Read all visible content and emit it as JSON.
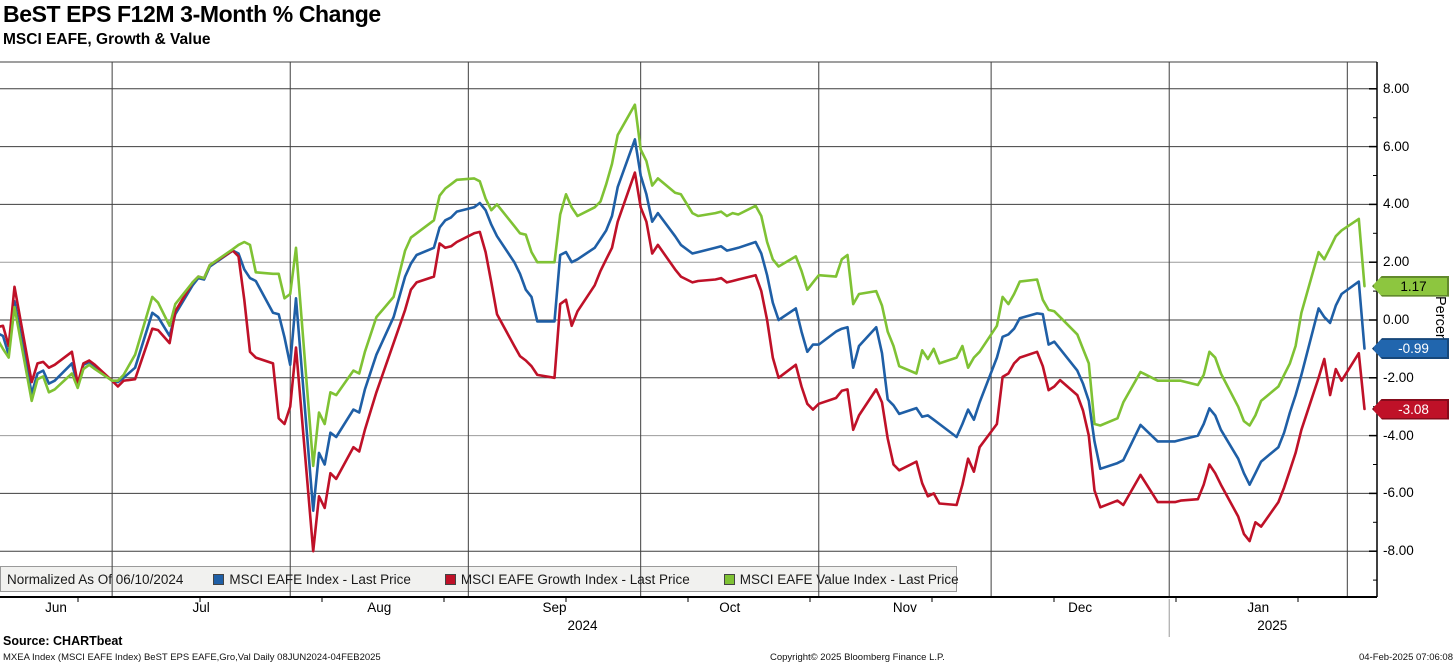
{
  "chart_data": {
    "type": "line",
    "title": "BeST EPS F12M 3-Month % Change",
    "subtitle": "MSCI EAFE, Growth & Value",
    "ylabel": "Percent",
    "ylim": [
      -9.6,
      8.9
    ],
    "grid": "on",
    "legend": {
      "position": "bottom-inside",
      "note": "Normalized As Of 06/10/2024"
    },
    "y_axis": {
      "major_ticks": [
        8,
        6,
        4,
        2,
        0,
        -2,
        -4,
        -6,
        -8
      ],
      "major_tick_labels": [
        "8.00",
        "6.00",
        "4.00",
        "2.00",
        "0.00",
        "-2.00",
        "-4.00",
        "-6.00",
        "-8.00"
      ],
      "minor_ticks": [
        7,
        5,
        3,
        1,
        -1,
        -3,
        -5,
        -7,
        -9
      ]
    },
    "x_axis": {
      "range": [
        "2024-06-08",
        "2025-02-04"
      ],
      "month_boundaries": [
        "2024-06-08",
        "2024-07-01",
        "2024-08-01",
        "2024-09-01",
        "2024-10-01",
        "2024-11-01",
        "2024-12-01",
        "2025-01-01",
        "2025-02-01"
      ],
      "month_labels": [
        "Jun",
        "Jul",
        "Aug",
        "Sep",
        "Oct",
        "Nov",
        "Dec",
        "Jan"
      ],
      "year_labels": [
        {
          "text": "2024",
          "month_index": 3,
          "dx": 28
        },
        {
          "text": "2025",
          "month_index": 7,
          "dx": 14
        }
      ]
    },
    "series": [
      {
        "key": "eafe",
        "name": "MSCI EAFE Index - Last Price",
        "color": "#1f5fa6",
        "badge_bg": "#2166ae",
        "badge_text_color": "#ffffff",
        "last_value_label": "-0.99"
      },
      {
        "key": "growth",
        "name": "MSCI EAFE Growth Index - Last Price",
        "color": "#bf1128",
        "badge_bg": "#bf1128",
        "badge_text_color": "#ffffff",
        "last_value_label": "-3.08"
      },
      {
        "key": "value",
        "name": "MSCI EAFE Value Index - Last Price",
        "color": "#7fc234",
        "badge_bg": "#8dc63f",
        "badge_text_color": "#000000",
        "last_value_label": "1.17"
      }
    ],
    "points_format": [
      "date",
      "eafe",
      "growth",
      "value"
    ],
    "points": [
      [
        "2024-06-10",
        0.0,
        0.0,
        0.0
      ],
      [
        "2024-06-11",
        -0.45,
        -0.25,
        -0.65
      ],
      [
        "2024-06-12",
        -0.55,
        -0.2,
        -1.0
      ],
      [
        "2024-06-13",
        -1.2,
        -0.9,
        -1.3
      ],
      [
        "2024-06-14",
        0.65,
        1.15,
        0.45
      ],
      [
        "2024-06-17",
        -2.55,
        -2.15,
        -2.8
      ],
      [
        "2024-06-18",
        -1.85,
        -1.5,
        -2.05
      ],
      [
        "2024-06-19",
        -1.75,
        -1.45,
        -1.95
      ],
      [
        "2024-06-20",
        -2.2,
        -1.65,
        -2.5
      ],
      [
        "2024-06-21",
        -2.1,
        -1.55,
        -2.4
      ],
      [
        "2024-06-24",
        -1.5,
        -1.1,
        -1.85
      ],
      [
        "2024-06-25",
        -2.25,
        -2.2,
        -2.35
      ],
      [
        "2024-06-26",
        -1.55,
        -1.5,
        -1.7
      ],
      [
        "2024-06-27",
        -1.45,
        -1.4,
        -1.55
      ],
      [
        "2024-06-28",
        -1.6,
        -1.55,
        -1.7
      ],
      [
        "2024-07-01",
        -2.1,
        -2.1,
        -2.1
      ],
      [
        "2024-07-02",
        -2.15,
        -2.3,
        -2.1
      ],
      [
        "2024-07-03",
        -2.0,
        -2.1,
        -1.9
      ],
      [
        "2024-07-05",
        -1.65,
        -2.05,
        -1.2
      ],
      [
        "2024-07-08",
        0.25,
        -0.3,
        0.8
      ],
      [
        "2024-07-09",
        0.1,
        -0.35,
        0.6
      ],
      [
        "2024-07-11",
        -0.55,
        -0.8,
        -0.2
      ],
      [
        "2024-07-12",
        0.2,
        0.3,
        0.55
      ],
      [
        "2024-07-15",
        1.2,
        1.3,
        1.3
      ],
      [
        "2024-07-16",
        1.45,
        1.5,
        1.5
      ],
      [
        "2024-07-17",
        1.4,
        1.45,
        1.45
      ],
      [
        "2024-07-18",
        1.85,
        1.9,
        1.9
      ],
      [
        "2024-07-22",
        2.4,
        2.4,
        2.45
      ],
      [
        "2024-07-23",
        2.3,
        2.2,
        2.6
      ],
      [
        "2024-07-24",
        1.75,
        0.7,
        2.7
      ],
      [
        "2024-07-25",
        1.45,
        -1.1,
        2.6
      ],
      [
        "2024-07-26",
        1.35,
        -1.3,
        1.65
      ],
      [
        "2024-07-29",
        0.25,
        -1.5,
        1.6
      ],
      [
        "2024-07-30",
        0.2,
        -3.4,
        1.6
      ],
      [
        "2024-07-31",
        -0.6,
        -3.6,
        0.75
      ],
      [
        "2024-08-01",
        -1.55,
        -3.0,
        0.9
      ],
      [
        "2024-08-02",
        0.75,
        -0.95,
        2.5
      ],
      [
        "2024-08-05",
        -6.6,
        -8.0,
        -5.05
      ],
      [
        "2024-08-06",
        -4.6,
        -6.1,
        -3.2
      ],
      [
        "2024-08-07",
        -5.0,
        -6.5,
        -3.6
      ],
      [
        "2024-08-08",
        -3.9,
        -5.3,
        -2.5
      ],
      [
        "2024-08-09",
        -4.05,
        -5.5,
        -2.6
      ],
      [
        "2024-08-12",
        -3.1,
        -4.4,
        -1.75
      ],
      [
        "2024-08-13",
        -3.2,
        -4.55,
        -1.85
      ],
      [
        "2024-08-14",
        -2.4,
        -3.8,
        -1.1
      ],
      [
        "2024-08-16",
        -1.2,
        -2.5,
        0.1
      ],
      [
        "2024-08-19",
        0.1,
        -0.8,
        0.8
      ],
      [
        "2024-08-21",
        1.5,
        0.35,
        2.4
      ],
      [
        "2024-08-22",
        1.95,
        1.05,
        2.85
      ],
      [
        "2024-08-23",
        2.25,
        1.3,
        3.0
      ],
      [
        "2024-08-26",
        2.5,
        1.5,
        3.45
      ],
      [
        "2024-08-27",
        3.2,
        2.65,
        4.3
      ],
      [
        "2024-08-28",
        3.45,
        2.5,
        4.55
      ],
      [
        "2024-08-29",
        3.55,
        2.55,
        4.7
      ],
      [
        "2024-08-30",
        3.75,
        2.7,
        4.85
      ],
      [
        "2024-09-02",
        3.9,
        3.0,
        4.9
      ],
      [
        "2024-09-03",
        4.05,
        3.05,
        4.8
      ],
      [
        "2024-09-04",
        3.8,
        2.35,
        4.2
      ],
      [
        "2024-09-05",
        3.3,
        1.3,
        3.8
      ],
      [
        "2024-09-06",
        2.9,
        0.2,
        4.0
      ],
      [
        "2024-09-09",
        2.0,
        -0.9,
        3.25
      ],
      [
        "2024-09-10",
        1.6,
        -1.25,
        3.0
      ],
      [
        "2024-09-11",
        1.05,
        -1.4,
        2.95
      ],
      [
        "2024-09-12",
        0.8,
        -1.6,
        2.35
      ],
      [
        "2024-09-13",
        -0.05,
        -1.9,
        2.0
      ],
      [
        "2024-09-16",
        -0.05,
        -2.0,
        2.0
      ],
      [
        "2024-09-17",
        2.25,
        0.55,
        3.65
      ],
      [
        "2024-09-18",
        2.35,
        0.7,
        4.35
      ],
      [
        "2024-09-19",
        2.0,
        -0.2,
        3.9
      ],
      [
        "2024-09-20",
        2.1,
        0.3,
        3.6
      ],
      [
        "2024-09-23",
        2.5,
        1.2,
        3.9
      ],
      [
        "2024-09-24",
        2.8,
        1.7,
        4.1
      ],
      [
        "2024-09-25",
        3.1,
        2.1,
        4.7
      ],
      [
        "2024-09-26",
        3.6,
        2.5,
        5.4
      ],
      [
        "2024-09-27",
        4.6,
        3.4,
        6.4
      ],
      [
        "2024-09-30",
        6.25,
        5.1,
        7.45
      ],
      [
        "2024-10-01",
        5.0,
        3.9,
        5.9
      ],
      [
        "2024-10-02",
        4.35,
        3.4,
        5.5
      ],
      [
        "2024-10-03",
        3.4,
        2.3,
        4.65
      ],
      [
        "2024-10-04",
        3.7,
        2.6,
        4.9
      ],
      [
        "2024-10-07",
        2.9,
        1.75,
        4.4
      ],
      [
        "2024-10-08",
        2.6,
        1.5,
        4.35
      ],
      [
        "2024-10-10",
        2.3,
        1.3,
        3.7
      ],
      [
        "2024-10-11",
        2.35,
        1.35,
        3.6
      ],
      [
        "2024-10-14",
        2.5,
        1.4,
        3.7
      ],
      [
        "2024-10-15",
        2.55,
        1.45,
        3.75
      ],
      [
        "2024-10-16",
        2.4,
        1.3,
        3.6
      ],
      [
        "2024-10-17",
        2.45,
        1.35,
        3.7
      ],
      [
        "2024-10-18",
        2.5,
        1.4,
        3.65
      ],
      [
        "2024-10-21",
        2.7,
        1.55,
        3.95
      ],
      [
        "2024-10-22",
        2.3,
        1.0,
        3.6
      ],
      [
        "2024-10-23",
        1.55,
        0.0,
        2.7
      ],
      [
        "2024-10-24",
        0.6,
        -1.3,
        2.1
      ],
      [
        "2024-10-25",
        0.0,
        -2.0,
        1.85
      ],
      [
        "2024-10-28",
        0.4,
        -1.55,
        2.2
      ],
      [
        "2024-10-29",
        -0.4,
        -2.3,
        1.7
      ],
      [
        "2024-10-30",
        -1.1,
        -2.9,
        1.05
      ],
      [
        "2024-10-31",
        -0.85,
        -3.1,
        1.3
      ],
      [
        "2024-11-01",
        -0.85,
        -2.9,
        1.55
      ],
      [
        "2024-11-04",
        -0.4,
        -2.7,
        1.5
      ],
      [
        "2024-11-05",
        -0.3,
        -2.45,
        2.1
      ],
      [
        "2024-11-06",
        -0.25,
        -2.4,
        2.25
      ],
      [
        "2024-11-07",
        -1.65,
        -3.8,
        0.55
      ],
      [
        "2024-11-08",
        -0.9,
        -3.3,
        0.9
      ],
      [
        "2024-11-11",
        -0.25,
        -2.4,
        1.0
      ],
      [
        "2024-11-12",
        -1.15,
        -2.85,
        0.5
      ],
      [
        "2024-11-13",
        -2.75,
        -4.1,
        -0.4
      ],
      [
        "2024-11-14",
        -2.95,
        -5.0,
        -0.9
      ],
      [
        "2024-11-15",
        -3.25,
        -5.2,
        -1.6
      ],
      [
        "2024-11-18",
        -3.05,
        -4.9,
        -1.85
      ],
      [
        "2024-11-19",
        -3.35,
        -5.65,
        -1.05
      ],
      [
        "2024-11-20",
        -3.3,
        -6.1,
        -1.35
      ],
      [
        "2024-11-21",
        -3.45,
        -6.0,
        -1.0
      ],
      [
        "2024-11-22",
        -3.6,
        -6.35,
        -1.5
      ],
      [
        "2024-11-25",
        -4.05,
        -6.4,
        -1.3
      ],
      [
        "2024-11-26",
        -3.6,
        -5.7,
        -0.9
      ],
      [
        "2024-11-27",
        -3.1,
        -4.8,
        -1.65
      ],
      [
        "2024-11-28",
        -3.45,
        -5.25,
        -1.3
      ],
      [
        "2024-11-29",
        -2.85,
        -4.4,
        -1.1
      ],
      [
        "2024-12-02",
        -1.3,
        -3.6,
        -0.2
      ],
      [
        "2024-12-03",
        -0.58,
        -1.97,
        0.8
      ],
      [
        "2024-12-04",
        -0.5,
        -1.85,
        0.55
      ],
      [
        "2024-12-05",
        -0.3,
        -1.5,
        0.9
      ],
      [
        "2024-12-06",
        0.06,
        -1.3,
        1.33
      ],
      [
        "2024-12-09",
        0.23,
        -1.1,
        1.4
      ],
      [
        "2024-12-10",
        0.2,
        -1.6,
        0.7
      ],
      [
        "2024-12-11",
        -0.85,
        -2.43,
        0.35
      ],
      [
        "2024-12-12",
        -0.75,
        -2.3,
        0.3
      ],
      [
        "2024-12-13",
        -1.0,
        -2.08,
        0.1
      ],
      [
        "2024-12-16",
        -1.75,
        -2.6,
        -0.5
      ],
      [
        "2024-12-17",
        -2.2,
        -3.13,
        -1.0
      ],
      [
        "2024-12-18",
        -2.8,
        -4.0,
        -1.5
      ],
      [
        "2024-12-19",
        -4.2,
        -5.9,
        -3.6
      ],
      [
        "2024-12-20",
        -5.15,
        -6.48,
        -3.65
      ],
      [
        "2024-12-23",
        -4.95,
        -6.25,
        -3.4
      ],
      [
        "2024-12-24",
        -4.85,
        -6.4,
        -2.85
      ],
      [
        "2024-12-27",
        -3.63,
        -5.36,
        -1.8
      ],
      [
        "2024-12-30",
        -4.2,
        -6.3,
        -2.1
      ],
      [
        "2024-12-31",
        -4.2,
        -6.3,
        -2.1
      ],
      [
        "2025-01-02",
        -4.2,
        -6.3,
        -2.1
      ],
      [
        "2025-01-03",
        -4.15,
        -6.25,
        -2.1
      ],
      [
        "2025-01-06",
        -4.0,
        -6.2,
        -2.25
      ],
      [
        "2025-01-07",
        -3.6,
        -5.7,
        -1.9
      ],
      [
        "2025-01-08",
        -3.06,
        -5.0,
        -1.1
      ],
      [
        "2025-01-09",
        -3.3,
        -5.3,
        -1.3
      ],
      [
        "2025-01-10",
        -3.8,
        -5.7,
        -1.85
      ],
      [
        "2025-01-13",
        -4.8,
        -6.8,
        -3.0
      ],
      [
        "2025-01-14",
        -5.3,
        -7.4,
        -3.5
      ],
      [
        "2025-01-15",
        -5.7,
        -7.65,
        -3.65
      ],
      [
        "2025-01-16",
        -5.3,
        -7.0,
        -3.3
      ],
      [
        "2025-01-17",
        -4.9,
        -7.15,
        -2.8
      ],
      [
        "2025-01-20",
        -4.4,
        -6.3,
        -2.3
      ],
      [
        "2025-01-21",
        -3.9,
        -5.8,
        -1.9
      ],
      [
        "2025-01-22",
        -3.2,
        -5.2,
        -1.5
      ],
      [
        "2025-01-23",
        -2.6,
        -4.6,
        -0.9
      ],
      [
        "2025-01-24",
        -1.9,
        -3.8,
        0.25
      ],
      [
        "2025-01-27",
        0.4,
        -2.0,
        2.35
      ],
      [
        "2025-01-28",
        0.1,
        -1.35,
        2.1
      ],
      [
        "2025-01-29",
        -0.1,
        -2.6,
        2.5
      ],
      [
        "2025-01-30",
        0.5,
        -1.7,
        2.9
      ],
      [
        "2025-01-31",
        0.9,
        -2.1,
        3.1
      ],
      [
        "2025-02-03",
        1.33,
        -1.15,
        3.5
      ],
      [
        "2025-02-04",
        -0.99,
        -3.08,
        1.17
      ]
    ]
  },
  "footer": {
    "source": "Source: CHARTbeat",
    "meta": "MXEA Index (MSCI EAFE Index) BeST EPS EAFE,Gro,Val  Daily 08JUN2024-04FEB2025",
    "copyright": "Copyright© 2025 Bloomberg Finance L.P.",
    "timestamp": "04-Feb-2025 07:06:08"
  }
}
